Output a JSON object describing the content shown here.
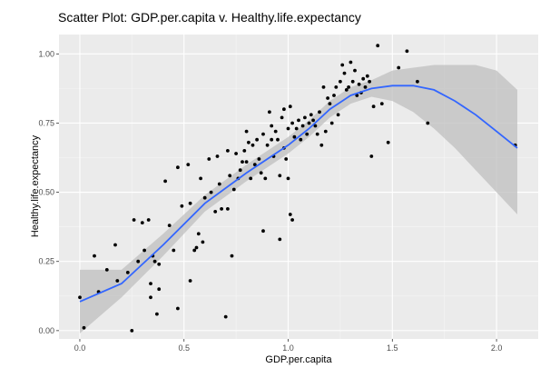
{
  "chart_data": {
    "type": "scatter",
    "title": "Scatter Plot: GDP.per.capita v. Healthy.life.expectancy",
    "xlabel": "GDP.per.capita",
    "ylabel": "Healthy.life.expectancy",
    "xlim": [
      -0.1,
      2.2
    ],
    "ylim": [
      -0.03,
      1.07
    ],
    "x_ticks": [
      0.0,
      0.5,
      1.0,
      1.5,
      2.0
    ],
    "x_tick_labels": [
      "0.0",
      "0.5",
      "1.0",
      "1.5",
      "2.0"
    ],
    "y_ticks": [
      0.0,
      0.25,
      0.5,
      0.75,
      1.0
    ],
    "y_tick_labels": [
      "0.00",
      "0.25",
      "0.50",
      "0.75",
      "1.00"
    ],
    "grid": true,
    "legend": "none",
    "colors": {
      "panel_background": "#ebebeb",
      "grid_major": "#ffffff",
      "grid_minor": "#f5f5f5",
      "points": "#000000",
      "smooth_line": "#3366ff",
      "confidence_band": "#bfbfbf"
    },
    "points": [
      [
        0.0,
        0.12
      ],
      [
        0.02,
        0.01
      ],
      [
        0.07,
        0.27
      ],
      [
        0.09,
        0.14
      ],
      [
        0.13,
        0.22
      ],
      [
        0.17,
        0.31
      ],
      [
        0.18,
        0.18
      ],
      [
        0.23,
        0.21
      ],
      [
        0.25,
        0.0
      ],
      [
        0.26,
        0.4
      ],
      [
        0.28,
        0.25
      ],
      [
        0.3,
        0.39
      ],
      [
        0.31,
        0.29
      ],
      [
        0.33,
        0.4
      ],
      [
        0.34,
        0.17
      ],
      [
        0.34,
        0.12
      ],
      [
        0.35,
        0.27
      ],
      [
        0.36,
        0.25
      ],
      [
        0.37,
        0.06
      ],
      [
        0.38,
        0.15
      ],
      [
        0.38,
        0.24
      ],
      [
        0.41,
        0.54
      ],
      [
        0.43,
        0.38
      ],
      [
        0.45,
        0.29
      ],
      [
        0.47,
        0.08
      ],
      [
        0.47,
        0.59
      ],
      [
        0.49,
        0.45
      ],
      [
        0.52,
        0.6
      ],
      [
        0.53,
        0.46
      ],
      [
        0.53,
        0.18
      ],
      [
        0.55,
        0.29
      ],
      [
        0.56,
        0.3
      ],
      [
        0.57,
        0.35
      ],
      [
        0.58,
        0.55
      ],
      [
        0.59,
        0.32
      ],
      [
        0.6,
        0.48
      ],
      [
        0.62,
        0.62
      ],
      [
        0.63,
        0.5
      ],
      [
        0.65,
        0.43
      ],
      [
        0.66,
        0.63
      ],
      [
        0.67,
        0.53
      ],
      [
        0.68,
        0.44
      ],
      [
        0.7,
        0.05
      ],
      [
        0.71,
        0.65
      ],
      [
        0.71,
        0.44
      ],
      [
        0.72,
        0.56
      ],
      [
        0.73,
        0.27
      ],
      [
        0.74,
        0.51
      ],
      [
        0.75,
        0.64
      ],
      [
        0.76,
        0.55
      ],
      [
        0.77,
        0.58
      ],
      [
        0.78,
        0.61
      ],
      [
        0.79,
        0.65
      ],
      [
        0.8,
        0.61
      ],
      [
        0.8,
        0.72
      ],
      [
        0.81,
        0.68
      ],
      [
        0.82,
        0.55
      ],
      [
        0.83,
        0.67
      ],
      [
        0.84,
        0.6
      ],
      [
        0.85,
        0.69
      ],
      [
        0.86,
        0.62
      ],
      [
        0.87,
        0.57
      ],
      [
        0.88,
        0.36
      ],
      [
        0.88,
        0.71
      ],
      [
        0.89,
        0.55
      ],
      [
        0.9,
        0.67
      ],
      [
        0.91,
        0.79
      ],
      [
        0.92,
        0.74
      ],
      [
        0.92,
        0.69
      ],
      [
        0.93,
        0.63
      ],
      [
        0.94,
        0.72
      ],
      [
        0.95,
        0.69
      ],
      [
        0.96,
        0.33
      ],
      [
        0.96,
        0.56
      ],
      [
        0.97,
        0.77
      ],
      [
        0.98,
        0.66
      ],
      [
        0.98,
        0.8
      ],
      [
        0.99,
        0.62
      ],
      [
        1.0,
        0.73
      ],
      [
        1.0,
        0.55
      ],
      [
        1.01,
        0.42
      ],
      [
        1.01,
        0.81
      ],
      [
        1.02,
        0.75
      ],
      [
        1.02,
        0.4
      ],
      [
        1.03,
        0.7
      ],
      [
        1.04,
        0.73
      ],
      [
        1.05,
        0.76
      ],
      [
        1.06,
        0.69
      ],
      [
        1.07,
        0.74
      ],
      [
        1.08,
        0.77
      ],
      [
        1.09,
        0.71
      ],
      [
        1.1,
        0.75
      ],
      [
        1.11,
        0.78
      ],
      [
        1.12,
        0.76
      ],
      [
        1.13,
        0.74
      ],
      [
        1.14,
        0.71
      ],
      [
        1.15,
        0.79
      ],
      [
        1.16,
        0.67
      ],
      [
        1.17,
        0.88
      ],
      [
        1.18,
        0.72
      ],
      [
        1.19,
        0.84
      ],
      [
        1.2,
        0.82
      ],
      [
        1.21,
        0.75
      ],
      [
        1.22,
        0.85
      ],
      [
        1.23,
        0.88
      ],
      [
        1.24,
        0.78
      ],
      [
        1.25,
        0.9
      ],
      [
        1.26,
        0.96
      ],
      [
        1.27,
        0.93
      ],
      [
        1.28,
        0.87
      ],
      [
        1.29,
        0.88
      ],
      [
        1.3,
        0.97
      ],
      [
        1.31,
        0.9
      ],
      [
        1.32,
        0.94
      ],
      [
        1.33,
        0.85
      ],
      [
        1.34,
        0.89
      ],
      [
        1.35,
        0.86
      ],
      [
        1.36,
        0.91
      ],
      [
        1.37,
        0.88
      ],
      [
        1.38,
        0.92
      ],
      [
        1.39,
        0.9
      ],
      [
        1.4,
        0.63
      ],
      [
        1.41,
        0.81
      ],
      [
        1.43,
        1.03
      ],
      [
        1.45,
        0.82
      ],
      [
        1.48,
        0.68
      ],
      [
        1.53,
        0.95
      ],
      [
        1.57,
        1.01
      ],
      [
        1.62,
        0.9
      ],
      [
        1.67,
        0.75
      ],
      [
        2.09,
        0.67
      ]
    ],
    "smooth": {
      "x": [
        0.0,
        0.2,
        0.4,
        0.6,
        0.8,
        1.0,
        1.1,
        1.2,
        1.3,
        1.4,
        1.5,
        1.6,
        1.7,
        1.8,
        1.9,
        2.0,
        2.1
      ],
      "y": [
        0.105,
        0.17,
        0.31,
        0.46,
        0.57,
        0.67,
        0.73,
        0.8,
        0.85,
        0.875,
        0.885,
        0.885,
        0.87,
        0.83,
        0.78,
        0.72,
        0.66
      ],
      "lower": [
        -0.01,
        0.12,
        0.27,
        0.43,
        0.54,
        0.64,
        0.7,
        0.77,
        0.82,
        0.845,
        0.83,
        0.79,
        0.73,
        0.66,
        0.58,
        0.5,
        0.42
      ],
      "upper": [
        0.22,
        0.22,
        0.35,
        0.49,
        0.6,
        0.7,
        0.76,
        0.83,
        0.88,
        0.905,
        0.94,
        0.95,
        0.96,
        0.96,
        0.96,
        0.94,
        0.87
      ]
    }
  }
}
